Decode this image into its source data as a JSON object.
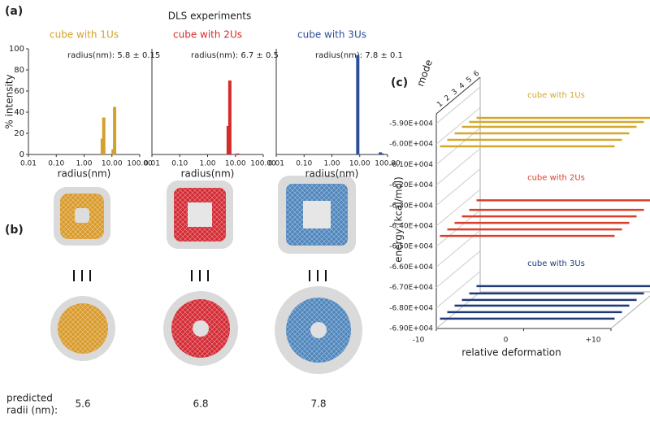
{
  "dls_title": "DLS experiments",
  "panel_labels": [
    "(a)",
    "(b)",
    "(c)"
  ],
  "panel_b": {
    "predicted_label": [
      "predicted",
      "radii (nm):"
    ],
    "radii": [
      5.6,
      6.8,
      7.8
    ]
  },
  "chart_data": [
    {
      "type": "bar",
      "subtitle": "cube with 1Us",
      "annotation": "radius(nm): 5.8 ± 0.15",
      "color": "#d4a02e",
      "x": [
        4.5,
        5.1,
        11,
        12.5
      ],
      "values": [
        15,
        35,
        5,
        45
      ],
      "xscale": "log",
      "xlim": [
        0.01,
        100
      ],
      "xticks": [
        0.01,
        {
          "value": 0.1,
          "label": "0.10"
        },
        {
          "value": 1,
          "label": "1.00"
        },
        {
          "value": 10,
          "label": "10.00"
        },
        {
          "value": 100,
          "label": "100.00"
        }
      ],
      "xlabel": "radius(nm)",
      "ylabel": "% intensity",
      "ylim": [
        0,
        100
      ],
      "yticks": [
        0,
        20,
        40,
        60,
        80,
        100
      ]
    },
    {
      "type": "bar",
      "subtitle": "cube with 2Us",
      "annotation": "radius(nm): 6.7 ± 0.5",
      "color": "#d62b2b",
      "x": [
        5.5,
        6.3,
        12
      ],
      "values": [
        27,
        70,
        1
      ],
      "xscale": "log",
      "xlim": [
        0.01,
        100
      ],
      "xticks": [
        0.01,
        {
          "value": 0.1,
          "label": "0.10"
        },
        {
          "value": 1,
          "label": "1.00"
        },
        {
          "value": 10,
          "label": "10.00"
        },
        {
          "value": 100,
          "label": "100.00"
        }
      ],
      "xlabel": "radius(nm)",
      "ylim": [
        0,
        100
      ]
    },
    {
      "type": "bar",
      "subtitle": "cube with 3Us",
      "annotation": "radius(nm): 7.8 ± 0.1",
      "color": "#2d4f9a",
      "x": [
        8.5,
        55,
        65
      ],
      "values": [
        94,
        2,
        1
      ],
      "xscale": "log",
      "xlim": [
        0.01,
        100
      ],
      "xticks": [
        0.01,
        {
          "value": 0.1,
          "label": "0.10"
        },
        {
          "value": 1,
          "label": "1.00"
        },
        {
          "value": 10,
          "label": "10.00"
        },
        {
          "value": 100,
          "label": "100.00"
        }
      ],
      "xlabel": "radius(nm)",
      "ylim": [
        0,
        100
      ]
    },
    {
      "type": "line3d",
      "ylabel": "energy (kcal/mol)",
      "xlabel": "relative deformation",
      "depth_label": "mode",
      "depth_ticks": [
        1,
        2,
        3,
        4,
        5,
        6
      ],
      "xlim": [
        -10,
        10
      ],
      "xticks": [
        -10,
        0,
        {
          "value": 10,
          "label": "+10"
        }
      ],
      "ylim": [
        -69000,
        -59000
      ],
      "yticks": [
        {
          "value": -59000,
          "label": "-5.90E+004"
        },
        {
          "value": -60000,
          "label": "-6.00E+004"
        },
        {
          "value": -61000,
          "label": "-6.10E+004"
        },
        {
          "value": -62000,
          "label": "-6.20E+004"
        },
        {
          "value": -63000,
          "label": "-6.30E+004"
        },
        {
          "value": -64000,
          "label": "-6.40E+004"
        },
        {
          "value": -65000,
          "label": "-6.50E+004"
        },
        {
          "value": -66000,
          "label": "-6.60E+004"
        },
        {
          "value": -67000,
          "label": "-6.70E+004"
        },
        {
          "value": -68000,
          "label": "-6.80E+004"
        },
        {
          "value": -69000,
          "label": "-6.90E+004"
        }
      ],
      "series": [
        {
          "name": "cube with 1Us",
          "color": "#d4a829",
          "values": [
            -60260,
            -60240,
            -60220,
            -60200,
            -60260,
            -60360
          ]
        },
        {
          "name": "cube with 2Us",
          "color": "#d9402a",
          "values": [
            -64630,
            -64610,
            -64590,
            -64570,
            -64550,
            -64380
          ]
        },
        {
          "name": "cube with 3Us",
          "color": "#1f3a7a",
          "values": [
            -68670,
            -68650,
            -68630,
            -68650,
            -68630,
            -68570
          ]
        }
      ]
    }
  ]
}
